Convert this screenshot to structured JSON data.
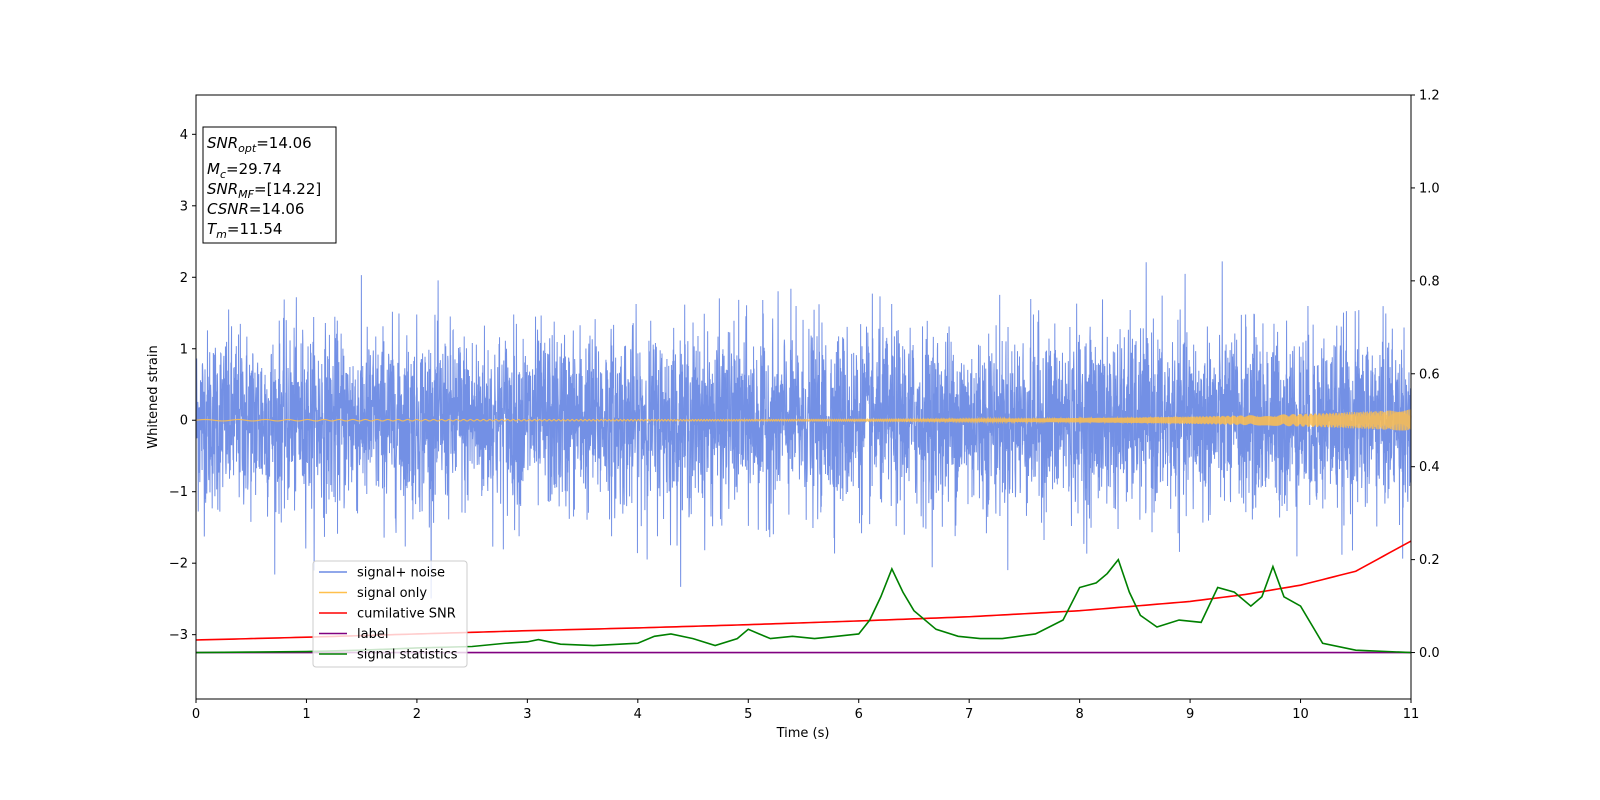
{
  "chart_data": {
    "type": "line",
    "xlabel": "Time (s)",
    "ylabel": "Whitened strain",
    "xlim": [
      0,
      11
    ],
    "ylim_left": [
      -3.9,
      4.55
    ],
    "ylim_right": [
      -0.1,
      1.2
    ],
    "x_ticks": [
      "0",
      "1",
      "2",
      "3",
      "4",
      "5",
      "6",
      "7",
      "8",
      "9",
      "10",
      "11"
    ],
    "y_ticks_left": [
      "−3",
      "−2",
      "−1",
      "0",
      "1",
      "2",
      "3",
      "4"
    ],
    "y_ticks_right": [
      "0.0",
      "0.2",
      "0.4",
      "0.6",
      "0.8",
      "1.0",
      "1.2"
    ],
    "legend_position": "lower-left",
    "colors": {
      "noise": "#6c8ae4",
      "signal": "#ffc04d",
      "snr": "#ff0000",
      "label": "#800080",
      "stats": "#008000"
    },
    "series": [
      {
        "name": "signal+ noise",
        "axis": "left",
        "description_range": [
          -2.9,
          2.9
        ],
        "color": "#6c8ae4"
      },
      {
        "name": "signal only",
        "axis": "left",
        "amplitude_start": 0.01,
        "amplitude_end": 0.15,
        "color": "#ffc04d"
      },
      {
        "name": "cumilative SNR",
        "axis": "right",
        "x": [
          0,
          1,
          2,
          3,
          4,
          5,
          6,
          7,
          8,
          9,
          9.5,
          10,
          10.5,
          11
        ],
        "values": [
          0.027,
          0.033,
          0.04,
          0.047,
          0.053,
          0.06,
          0.068,
          0.077,
          0.09,
          0.11,
          0.125,
          0.145,
          0.175,
          0.24
        ],
        "color": "#ff0000"
      },
      {
        "name": "label",
        "axis": "right",
        "x": [
          0,
          11
        ],
        "values": [
          0.0,
          0.0
        ],
        "color": "#800080"
      },
      {
        "name": "signal statistics",
        "axis": "right",
        "x": [
          0,
          0.5,
          1,
          1.5,
          2,
          2.5,
          2.8,
          3.0,
          3.1,
          3.3,
          3.6,
          4.0,
          4.15,
          4.3,
          4.5,
          4.7,
          4.9,
          5.0,
          5.1,
          5.2,
          5.4,
          5.6,
          5.8,
          6.0,
          6.1,
          6.2,
          6.3,
          6.4,
          6.5,
          6.7,
          6.9,
          7.1,
          7.3,
          7.6,
          7.85,
          8.0,
          8.15,
          8.25,
          8.35,
          8.45,
          8.55,
          8.7,
          8.9,
          9.1,
          9.25,
          9.4,
          9.55,
          9.65,
          9.75,
          9.85,
          10.0,
          10.2,
          10.5,
          11.0
        ],
        "values": [
          0.0,
          0.001,
          0.002,
          0.005,
          0.01,
          0.013,
          0.02,
          0.023,
          0.028,
          0.018,
          0.015,
          0.02,
          0.035,
          0.04,
          0.03,
          0.015,
          0.03,
          0.05,
          0.04,
          0.03,
          0.035,
          0.03,
          0.035,
          0.04,
          0.07,
          0.12,
          0.18,
          0.13,
          0.09,
          0.05,
          0.035,
          0.03,
          0.03,
          0.04,
          0.07,
          0.14,
          0.15,
          0.17,
          0.2,
          0.13,
          0.08,
          0.055,
          0.07,
          0.065,
          0.14,
          0.13,
          0.1,
          0.12,
          0.185,
          0.12,
          0.1,
          0.02,
          0.005,
          0.0
        ],
        "color": "#008000"
      }
    ],
    "annotation": {
      "lines": [
        {
          "base": "SNR",
          "sub": "opt",
          "rest": "=14.06"
        },
        {
          "base": "M",
          "sub": "c",
          "rest": "=29.74"
        },
        {
          "base": "SNR",
          "sub": "MF",
          "rest": "=[14.22]"
        },
        {
          "base": "CSNR",
          "sub": "",
          "rest": "=14.06"
        },
        {
          "base": "T",
          "sub": "m",
          "rest": "=11.54"
        }
      ]
    }
  }
}
